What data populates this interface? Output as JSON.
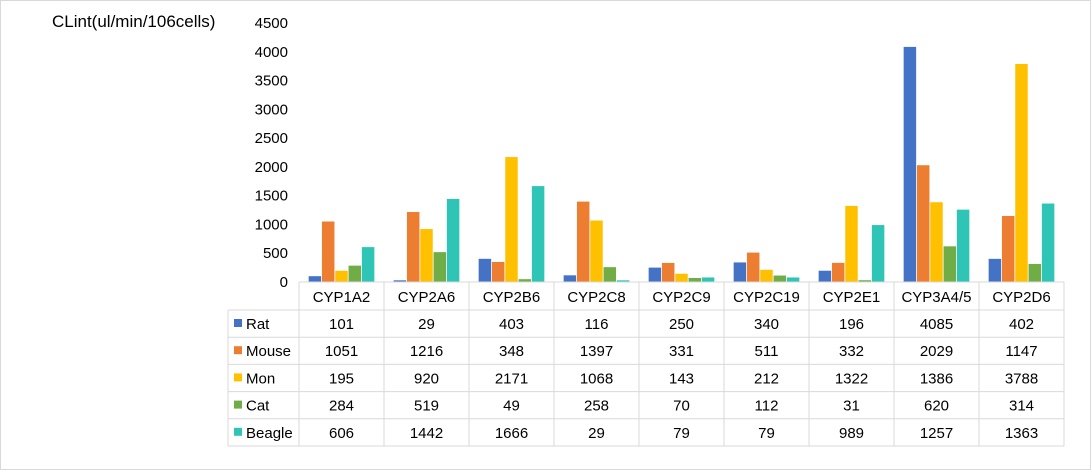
{
  "chart_data": {
    "type": "bar",
    "ylabel": "CLint(ul/min/106cells)",
    "ylim": [
      0,
      4500
    ],
    "yticks": [
      0,
      500,
      1000,
      1500,
      2000,
      2500,
      3000,
      3500,
      4000,
      4500
    ],
    "grid": false,
    "legend": "data-table-left",
    "categories": [
      "CYP1A2",
      "CYP2A6",
      "CYP2B6",
      "CYP2C8",
      "CYP2C9",
      "CYP2C19",
      "CYP2E1",
      "CYP3A4/5",
      "CYP2D6"
    ],
    "series": [
      {
        "name": "Rat",
        "color": "#4472c4",
        "values": [
          101,
          29,
          403,
          116,
          250,
          340,
          196,
          4085,
          402
        ]
      },
      {
        "name": "Mouse",
        "color": "#ed7d31",
        "values": [
          1051,
          1216,
          348,
          1397,
          331,
          511,
          332,
          2029,
          1147
        ]
      },
      {
        "name": "Mon",
        "color": "#ffc000",
        "values": [
          195,
          920,
          2171,
          1068,
          143,
          212,
          1322,
          1386,
          3788
        ]
      },
      {
        "name": "Cat",
        "color": "#70ad47",
        "values": [
          284,
          519,
          49,
          258,
          70,
          112,
          31,
          620,
          314
        ]
      },
      {
        "name": "Beagle",
        "color": "#2ec4b6",
        "values": [
          606,
          1442,
          1666,
          29,
          79,
          79,
          989,
          1257,
          1363
        ]
      }
    ]
  }
}
